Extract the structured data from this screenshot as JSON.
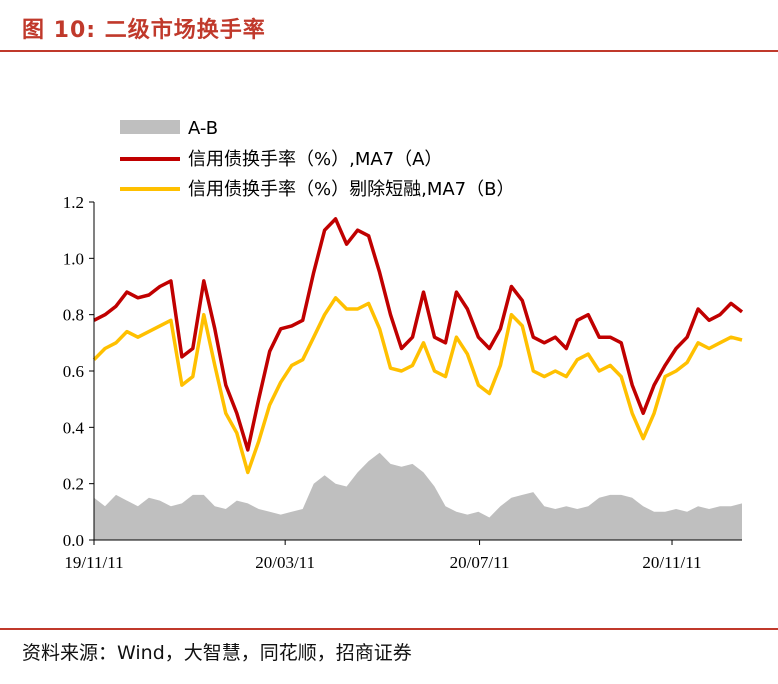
{
  "header": {
    "figure_title": "图 10: 二级市场换手率"
  },
  "footer": {
    "source": "资料来源：Wind，大智慧，同花顺，招商证券"
  },
  "colors": {
    "title_red": "#c0392b",
    "series_a": "#c00000",
    "series_b": "#ffc000",
    "area": "#bfbfbf"
  },
  "chart_data": {
    "type": "line",
    "title": "",
    "xlabel": "",
    "ylabel": "",
    "ylim": [
      0,
      1.2
    ],
    "yticks": [
      "0.0",
      "0.2",
      "0.4",
      "0.6",
      "0.8",
      "1.0",
      "1.2"
    ],
    "xticks": [
      "19/11/11",
      "20/03/11",
      "20/07/11",
      "20/11/11"
    ],
    "legend": {
      "placement": "top-left"
    },
    "x_points": 60,
    "series": [
      {
        "name": "A-B",
        "kind": "area",
        "values": [
          0.15,
          0.12,
          0.16,
          0.14,
          0.12,
          0.15,
          0.14,
          0.12,
          0.13,
          0.16,
          0.16,
          0.12,
          0.11,
          0.14,
          0.13,
          0.11,
          0.1,
          0.09,
          0.1,
          0.11,
          0.2,
          0.23,
          0.2,
          0.19,
          0.24,
          0.28,
          0.31,
          0.27,
          0.26,
          0.27,
          0.24,
          0.19,
          0.12,
          0.1,
          0.09,
          0.1,
          0.08,
          0.12,
          0.15,
          0.16,
          0.17,
          0.12,
          0.11,
          0.12,
          0.11,
          0.12,
          0.15,
          0.16,
          0.16,
          0.15,
          0.12,
          0.1,
          0.1,
          0.11,
          0.1,
          0.12,
          0.11,
          0.12,
          0.12,
          0.13
        ]
      },
      {
        "name": "信用债换手率（%）,MA7（A）",
        "kind": "line",
        "values": [
          0.78,
          0.8,
          0.83,
          0.88,
          0.86,
          0.87,
          0.9,
          0.92,
          0.65,
          0.68,
          0.92,
          0.75,
          0.55,
          0.45,
          0.32,
          0.5,
          0.67,
          0.75,
          0.76,
          0.78,
          0.95,
          1.1,
          1.14,
          1.05,
          1.1,
          1.08,
          0.95,
          0.8,
          0.68,
          0.72,
          0.88,
          0.72,
          0.7,
          0.88,
          0.82,
          0.72,
          0.68,
          0.75,
          0.9,
          0.85,
          0.72,
          0.7,
          0.72,
          0.68,
          0.78,
          0.8,
          0.72,
          0.72,
          0.7,
          0.55,
          0.45,
          0.55,
          0.62,
          0.68,
          0.72,
          0.82,
          0.78,
          0.8,
          0.84,
          0.81
        ]
      },
      {
        "name": "信用债换手率（%）剔除短融,MA7（B）",
        "kind": "line",
        "values": [
          0.64,
          0.68,
          0.7,
          0.74,
          0.72,
          0.74,
          0.76,
          0.78,
          0.55,
          0.58,
          0.8,
          0.62,
          0.45,
          0.38,
          0.24,
          0.35,
          0.48,
          0.56,
          0.62,
          0.64,
          0.72,
          0.8,
          0.86,
          0.82,
          0.82,
          0.84,
          0.75,
          0.61,
          0.6,
          0.62,
          0.7,
          0.6,
          0.58,
          0.72,
          0.66,
          0.55,
          0.52,
          0.62,
          0.8,
          0.76,
          0.6,
          0.58,
          0.6,
          0.58,
          0.64,
          0.66,
          0.6,
          0.62,
          0.58,
          0.45,
          0.36,
          0.45,
          0.58,
          0.6,
          0.63,
          0.7,
          0.68,
          0.7,
          0.72,
          0.71
        ]
      }
    ]
  }
}
